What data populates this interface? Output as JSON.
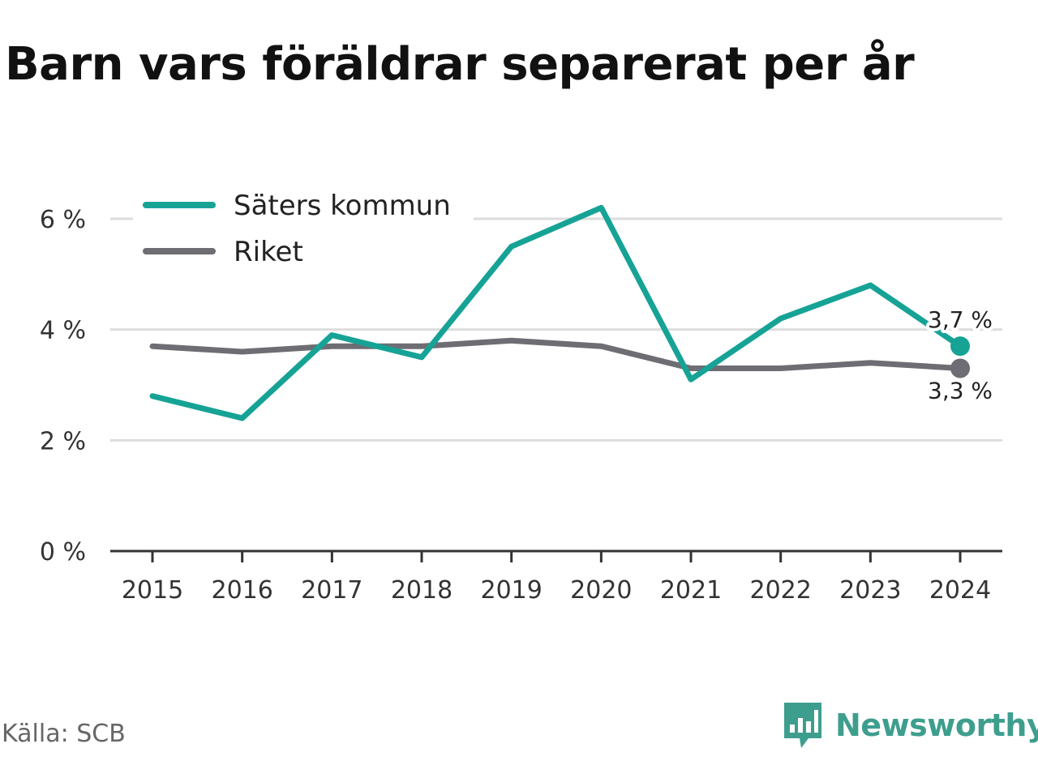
{
  "title": "Barn vars föräldrar separerat per år",
  "source": "Källa: SCB",
  "brand": "Newsworthy",
  "colors": {
    "saters": "#16a396",
    "riket": "#6d6d73",
    "grid": "#dddddd",
    "axis": "#333333",
    "brand": "#3e9e8e"
  },
  "chart_data": {
    "type": "line",
    "x": [
      "2015",
      "2016",
      "2017",
      "2018",
      "2019",
      "2020",
      "2021",
      "2022",
      "2023",
      "2024"
    ],
    "ylim": [
      0,
      6
    ],
    "yticks": [
      0,
      2,
      4,
      6
    ],
    "ytick_labels": [
      "0 %",
      "2 %",
      "4 %",
      "6 %"
    ],
    "grid": true,
    "legend": "top-left",
    "series": [
      {
        "name": "Säters kommun",
        "color": "#16a396",
        "values": [
          2.8,
          2.4,
          3.9,
          3.5,
          5.5,
          6.2,
          3.1,
          4.2,
          4.8,
          3.7
        ],
        "end_label": "3,7 %"
      },
      {
        "name": "Riket",
        "color": "#6d6d73",
        "values": [
          3.7,
          3.6,
          3.7,
          3.7,
          3.8,
          3.7,
          3.3,
          3.3,
          3.4,
          3.3
        ],
        "end_label": "3,3 %"
      }
    ]
  }
}
